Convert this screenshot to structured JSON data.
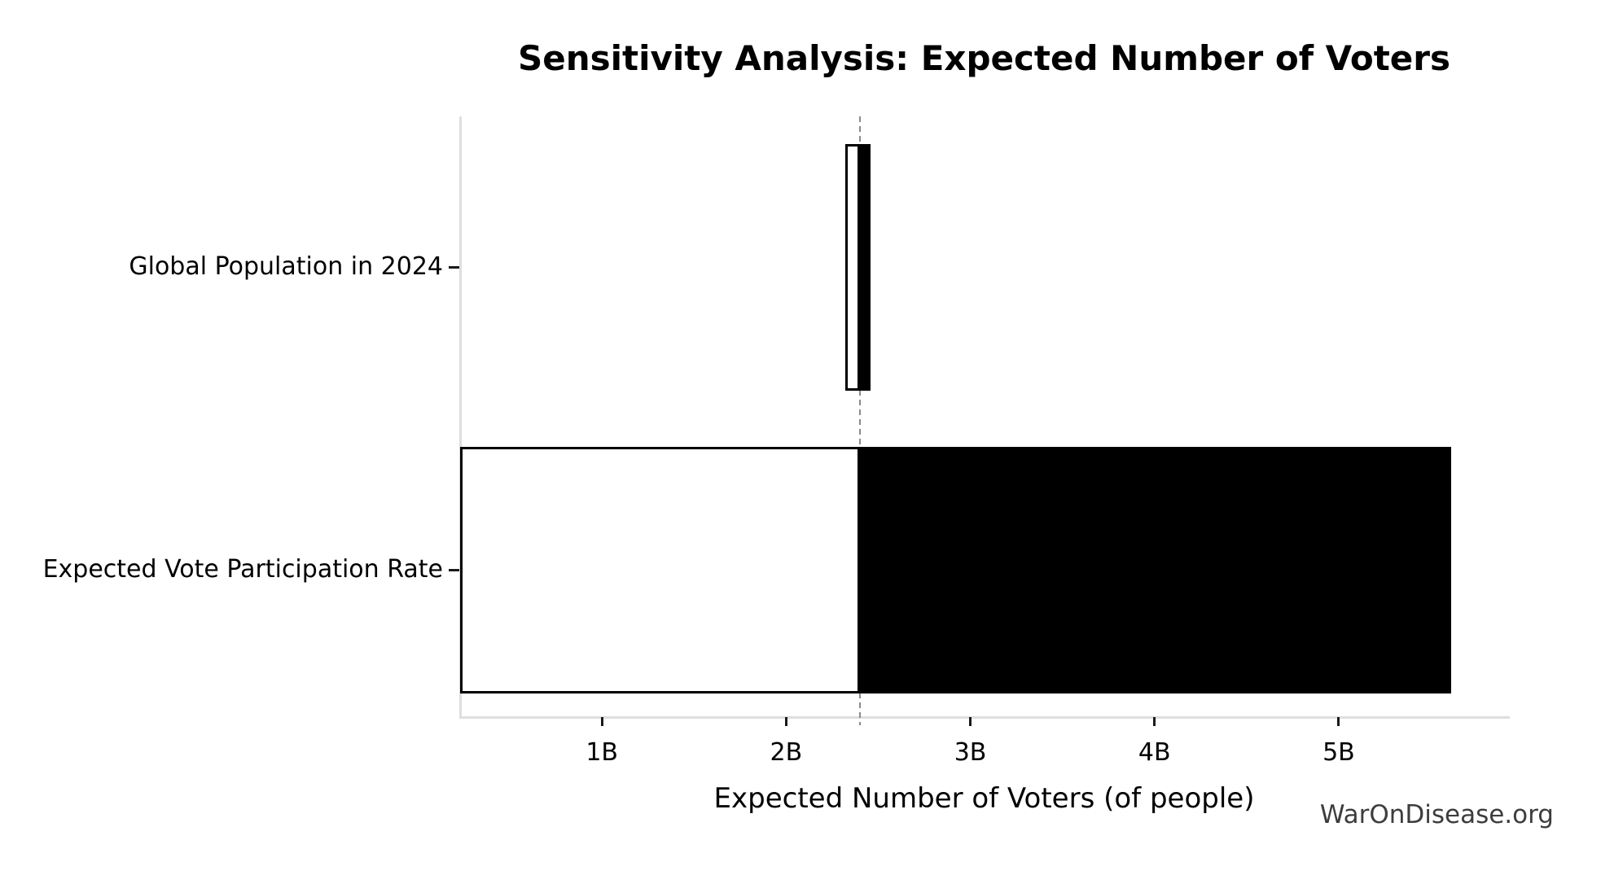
{
  "watermark": "WarOnDisease.org",
  "chart_data": {
    "type": "bar",
    "subtype": "tornado-sensitivity",
    "orientation": "horizontal",
    "title": "Sensitivity Analysis: Expected Number of Voters",
    "xlabel": "Expected Number of Voters (of people)",
    "ylabel": "",
    "unit": "billions of people",
    "categories": [
      "Global Population in 2024",
      "Expected Vote Participation Rate"
    ],
    "bars": [
      {
        "label": "Global Population in 2024",
        "low": 2.32,
        "high": 2.46
      },
      {
        "label": "Expected Vote Participation Rate",
        "low": 0.23,
        "high": 5.61
      }
    ],
    "base_value": 2.4,
    "xlim": [
      0.23,
      5.92
    ],
    "x_ticks": [
      {
        "value": 1,
        "label": "1B"
      },
      {
        "value": 2,
        "label": "2B"
      },
      {
        "value": 3,
        "label": "3B"
      },
      {
        "value": 4,
        "label": "4B"
      },
      {
        "value": 5,
        "label": "5B"
      }
    ],
    "grid": false,
    "legend": "none",
    "baseline_style": "dashed",
    "colors": {
      "low_segment_fill": "#ffffff",
      "high_segment_fill": "#000000",
      "bar_edge": "#000000",
      "baseline": "#8a8a8a",
      "spine": "#dedede",
      "tick": "#1a1a1a",
      "text": "#000000",
      "watermark": "#3d3d3d"
    }
  }
}
